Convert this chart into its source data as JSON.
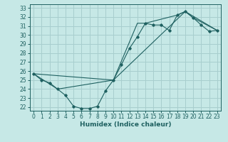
{
  "xlabel": "Humidex (Indice chaleur)",
  "bg_color": "#c6e8e6",
  "grid_color": "#a8cece",
  "line_color": "#1e6060",
  "xlim": [
    -0.5,
    23.5
  ],
  "ylim": [
    21.6,
    33.4
  ],
  "yticks": [
    22,
    23,
    24,
    25,
    26,
    27,
    28,
    29,
    30,
    31,
    32,
    33
  ],
  "xticks": [
    0,
    1,
    2,
    3,
    4,
    5,
    6,
    7,
    8,
    9,
    10,
    11,
    12,
    13,
    14,
    15,
    16,
    17,
    18,
    19,
    20,
    21,
    22,
    23
  ],
  "line1_x": [
    0,
    1,
    2,
    3,
    4,
    5,
    6,
    7,
    8,
    9,
    10,
    11,
    12,
    13,
    14,
    15,
    16,
    17,
    18,
    19,
    20,
    21,
    22,
    23
  ],
  "line1_y": [
    25.7,
    25.0,
    24.7,
    24.0,
    23.3,
    22.1,
    21.85,
    21.85,
    22.1,
    23.8,
    25.0,
    26.7,
    28.5,
    29.8,
    31.3,
    31.1,
    31.1,
    30.5,
    32.2,
    32.6,
    31.9,
    31.1,
    30.4,
    30.5
  ],
  "line2_x": [
    0,
    3,
    10,
    19,
    23
  ],
  "line2_y": [
    25.7,
    24.0,
    25.0,
    32.6,
    30.5
  ],
  "line3_x": [
    0,
    10,
    13,
    14,
    18,
    19,
    20,
    23
  ],
  "line3_y": [
    25.7,
    25.0,
    31.3,
    31.3,
    32.2,
    32.6,
    31.9,
    30.5
  ],
  "xlabel_fontsize": 6.5,
  "tick_fontsize": 5.5
}
